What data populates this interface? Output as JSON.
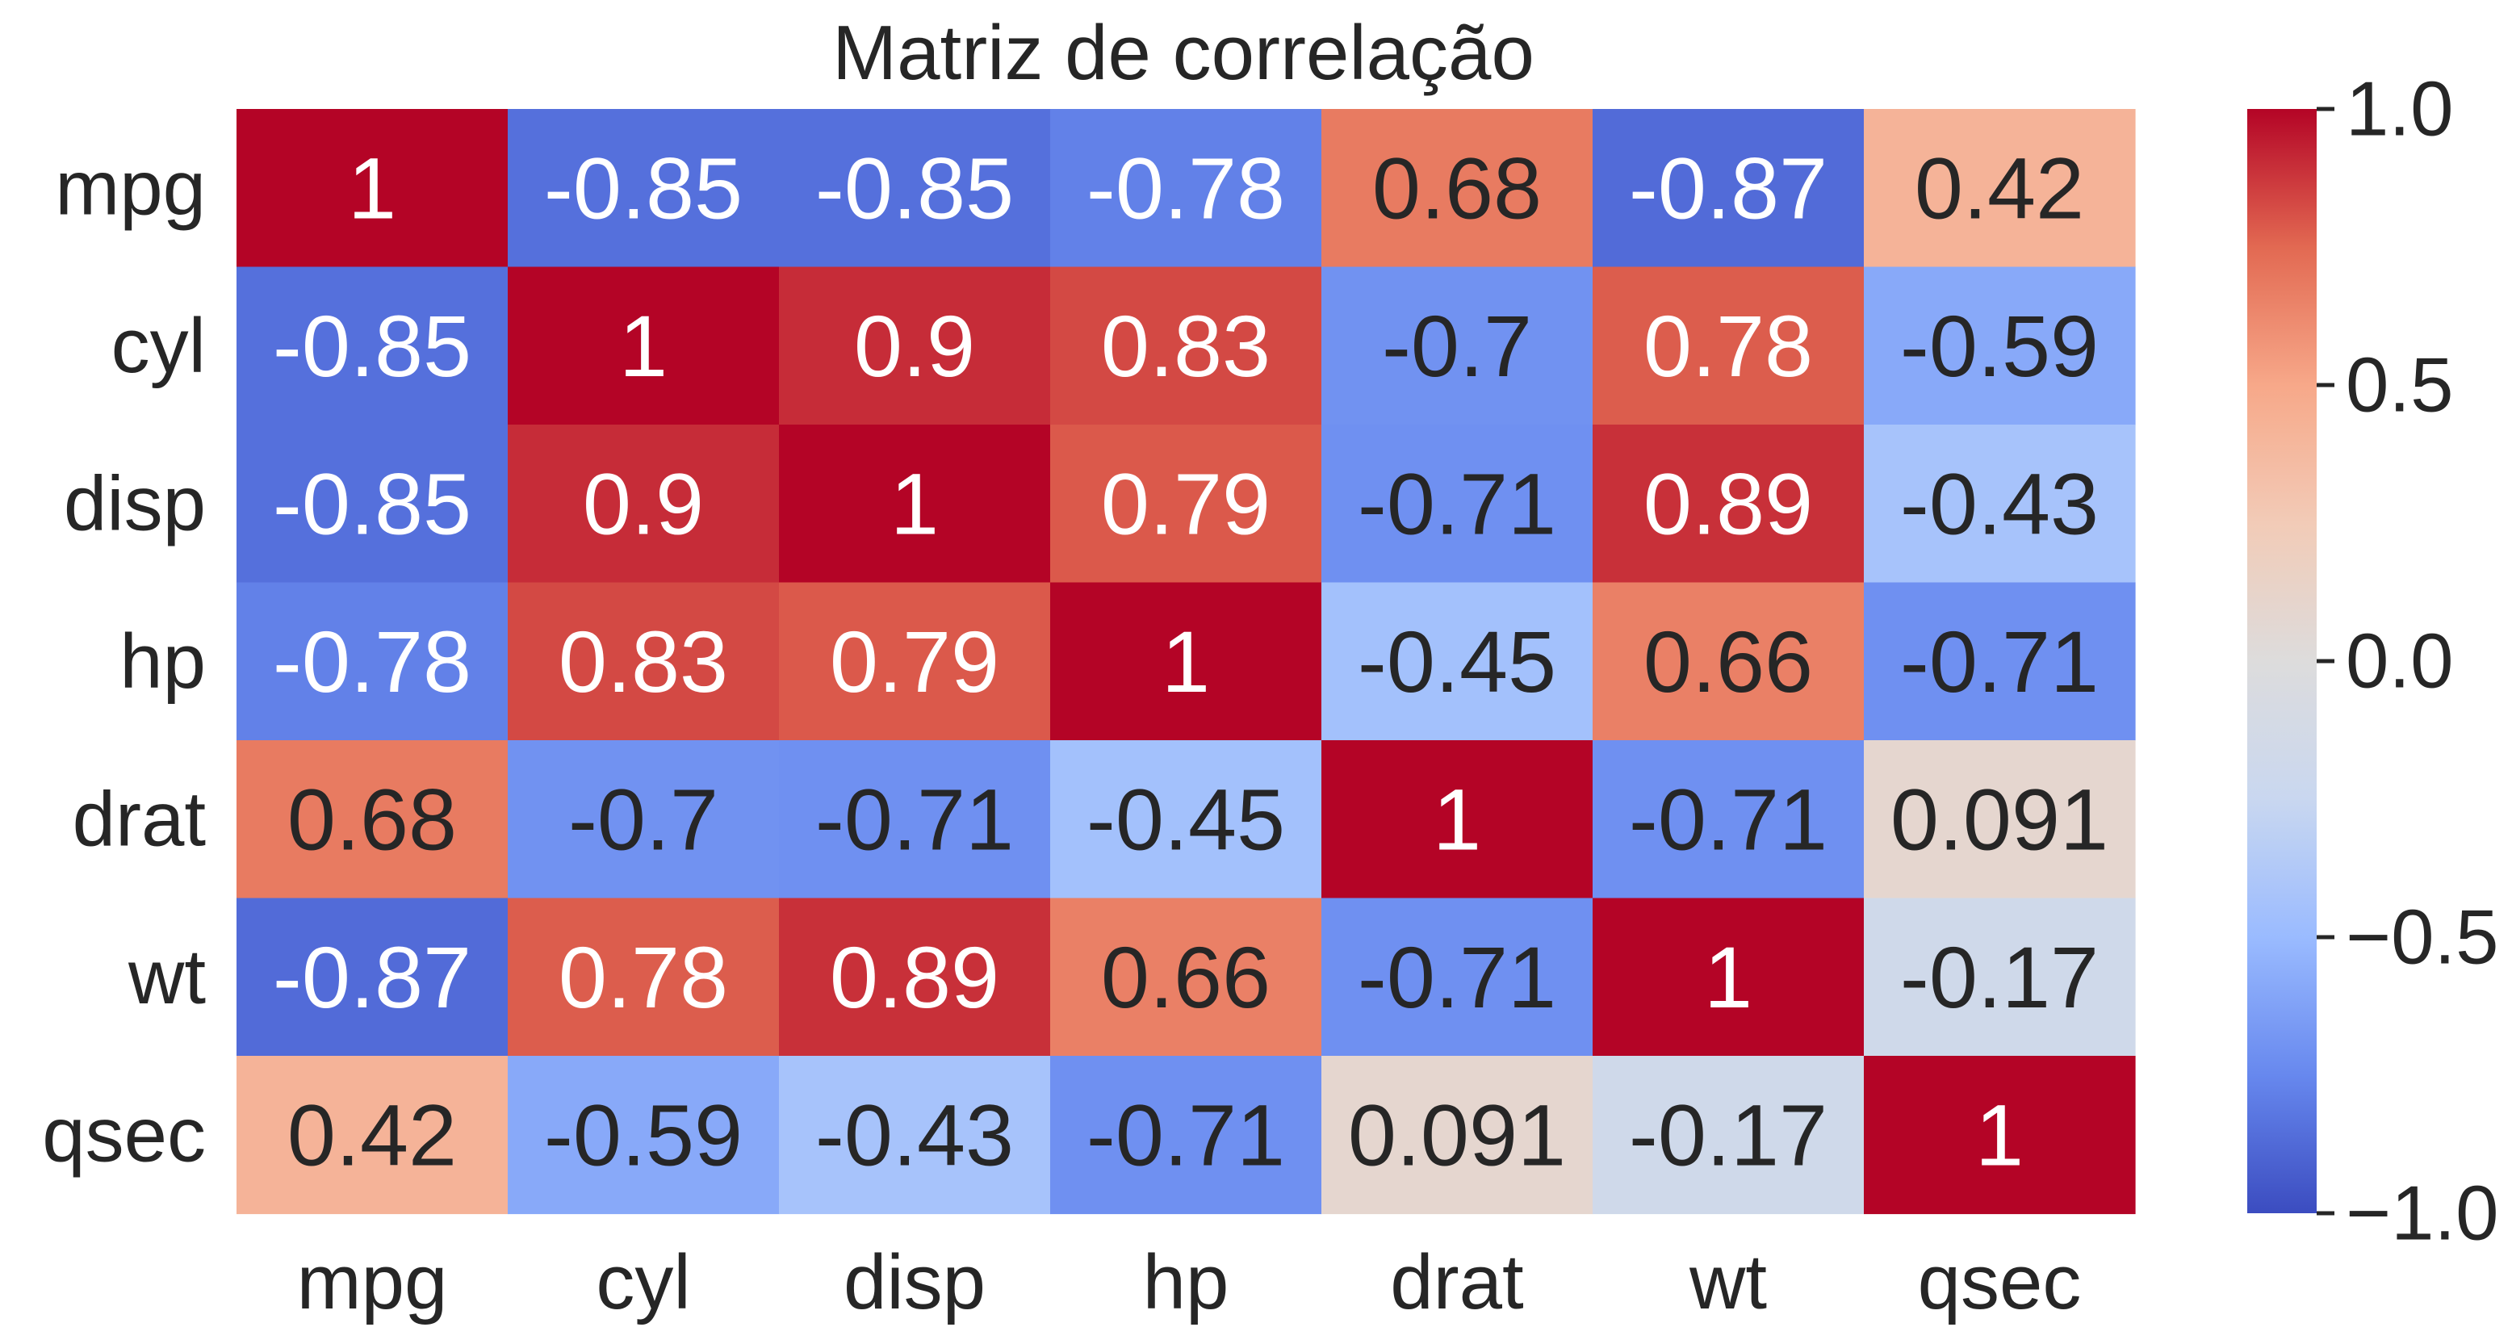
{
  "chart_data": {
    "type": "heatmap",
    "title": "Matriz de correlação",
    "row_labels": [
      "mpg",
      "cyl",
      "disp",
      "hp",
      "drat",
      "wt",
      "qsec"
    ],
    "col_labels": [
      "mpg",
      "cyl",
      "disp",
      "hp",
      "drat",
      "wt",
      "qsec"
    ],
    "values": [
      [
        1,
        -0.85,
        -0.85,
        -0.78,
        0.68,
        -0.87,
        0.42
      ],
      [
        -0.85,
        1,
        0.9,
        0.83,
        -0.7,
        0.78,
        -0.59
      ],
      [
        -0.85,
        0.9,
        1,
        0.79,
        -0.71,
        0.89,
        -0.43
      ],
      [
        -0.78,
        0.83,
        0.79,
        1,
        -0.45,
        0.66,
        -0.71
      ],
      [
        0.68,
        -0.7,
        -0.71,
        -0.45,
        1,
        -0.71,
        0.091
      ],
      [
        -0.87,
        0.78,
        0.89,
        0.66,
        -0.71,
        1,
        -0.17
      ],
      [
        0.42,
        -0.59,
        -0.43,
        -0.71,
        0.091,
        -0.17,
        1
      ]
    ],
    "cell_labels": [
      [
        "1",
        "-0.85",
        "-0.85",
        "-0.78",
        "0.68",
        "-0.87",
        "0.42"
      ],
      [
        "-0.85",
        "1",
        "0.9",
        "0.83",
        "-0.7",
        "0.78",
        "-0.59"
      ],
      [
        "-0.85",
        "0.9",
        "1",
        "0.79",
        "-0.71",
        "0.89",
        "-0.43"
      ],
      [
        "-0.78",
        "0.83",
        "0.79",
        "1",
        "-0.45",
        "0.66",
        "-0.71"
      ],
      [
        "0.68",
        "-0.7",
        "-0.71",
        "-0.45",
        "1",
        "-0.71",
        "0.091"
      ],
      [
        "-0.87",
        "0.78",
        "0.89",
        "0.66",
        "-0.71",
        "1",
        "-0.17"
      ],
      [
        "0.42",
        "-0.59",
        "-0.43",
        "-0.71",
        "0.091",
        "-0.17",
        "1"
      ]
    ],
    "colormap": "coolwarm",
    "vmin": -1.0,
    "vmax": 1.0,
    "colorbar_ticks": [
      1.0,
      0.5,
      0.0,
      -0.5,
      -1.0
    ],
    "colorbar_tick_labels": [
      "1.0",
      "0.5",
      "0.0",
      "−0.5",
      "−1.0"
    ],
    "colormap_stops": [
      "#3b4cc0",
      "#6788ee",
      "#9abbff",
      "#c9d7f0",
      "#dddcdc",
      "#f2cbb7",
      "#f7a889",
      "#e26952",
      "#b40426"
    ],
    "text_colors": {
      "light": "#ffffff",
      "dark": "#262626"
    },
    "grid": false
  }
}
